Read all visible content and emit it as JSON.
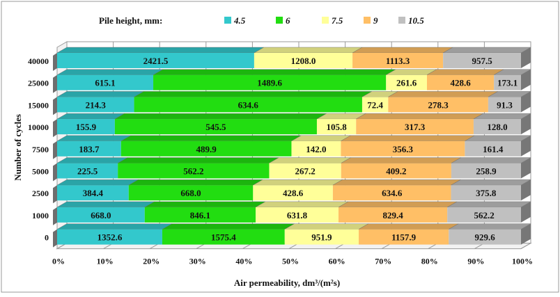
{
  "chart_data": {
    "type": "bar",
    "orientation": "horizontal",
    "stacked": "100%",
    "three_d": true,
    "legend_title": "Pile height, mm:",
    "legend_position": "top",
    "xlabel": "Air permeability, dm³/(m²s)",
    "ylabel": "Number of cycles",
    "xticks": [
      "0%",
      "10%",
      "20%",
      "30%",
      "40%",
      "50%",
      "60%",
      "70%",
      "80%",
      "90%",
      "100%"
    ],
    "xlim": [
      0,
      100
    ],
    "grid": true,
    "categories": [
      "40000",
      "25000",
      "15000",
      "10000",
      "7500",
      "5000",
      "2500",
      "1000",
      "0"
    ],
    "series": [
      {
        "name": "4.5",
        "color": "#33c8cc",
        "values": [
          2421.5,
          615.1,
          214.3,
          155.9,
          183.7,
          225.5,
          384.4,
          668.0,
          1352.6
        ],
        "labels": [
          "2421.5",
          "615.1",
          "214.3",
          "155.9",
          "183.7",
          "225.5",
          "384.4",
          "668.0",
          "1352.6"
        ]
      },
      {
        "name": "6",
        "color": "#22dd11",
        "values": [
          null,
          1489.6,
          634.6,
          545.5,
          489.9,
          562.2,
          668.0,
          846.1,
          1575.4
        ],
        "labels": [
          "",
          "1489.6",
          "634.6",
          "545.5",
          "489.9",
          "562.2",
          "668.0",
          "846.1",
          "1575.4"
        ]
      },
      {
        "name": "7.5",
        "color": "#ffff99",
        "values": [
          1208.0,
          261.6,
          72.4,
          105.8,
          142.0,
          267.2,
          428.6,
          631.8,
          951.9
        ],
        "labels": [
          "1208.0",
          "261.6",
          "72.4",
          "105.8",
          "142.0",
          "267.2",
          "428.6",
          "631.8",
          "951.9"
        ]
      },
      {
        "name": "9",
        "color": "#ffbf66",
        "values": [
          1113.3,
          428.6,
          278.3,
          317.3,
          356.3,
          409.2,
          634.6,
          829.4,
          1157.9
        ],
        "labels": [
          "1113.3",
          "428.6",
          "278.3",
          "317.3",
          "356.3",
          "409.2",
          "634.6",
          "829.4",
          "1157.9"
        ]
      },
      {
        "name": "10.5",
        "color": "#c0c0c0",
        "values": [
          957.5,
          173.1,
          91.3,
          128.0,
          161.4,
          258.9,
          375.8,
          562.2,
          929.6
        ],
        "labels": [
          "957.5",
          "173.1",
          "91.3",
          "128.0",
          "161.4",
          "258.9",
          "375.8",
          "562.2",
          "929.6"
        ]
      }
    ]
  }
}
